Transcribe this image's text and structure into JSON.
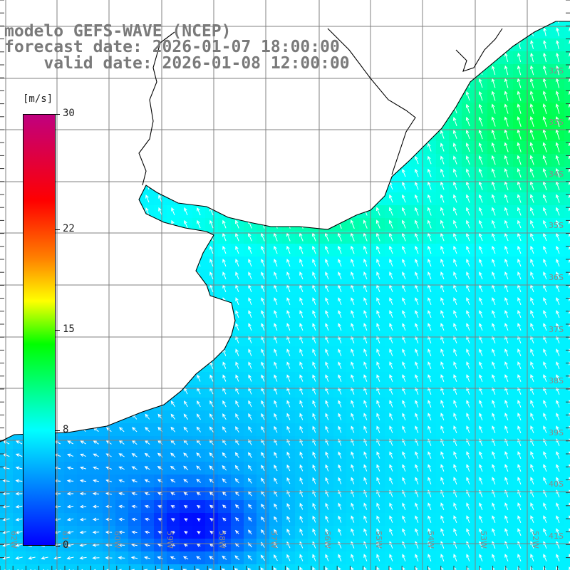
{
  "title": {
    "line1": "modelo GEFS-WAVE (NCEP)",
    "line2": "forecast date: 2026-01-07 18:00:00",
    "line3": "    valid date: 2026-01-08 12:00:00"
  },
  "colorbar": {
    "unit": "[m/s]",
    "min": 0,
    "max": 30,
    "ticks": [
      "30",
      "22",
      "15",
      "8",
      "0"
    ],
    "tick_values": [
      30,
      22,
      15,
      8,
      0
    ],
    "stops": [
      {
        "v": 0,
        "color": "#0000ff"
      },
      {
        "v": 4,
        "color": "#0080ff"
      },
      {
        "v": 8,
        "color": "#00ffff"
      },
      {
        "v": 11,
        "color": "#00ff80"
      },
      {
        "v": 14,
        "color": "#00ff00"
      },
      {
        "v": 17,
        "color": "#ffff00"
      },
      {
        "v": 20,
        "color": "#ff8000"
      },
      {
        "v": 24,
        "color": "#ff0000"
      },
      {
        "v": 30,
        "color": "#c0007f"
      }
    ]
  },
  "map": {
    "lon_range": [
      -63,
      -52
    ],
    "lat_range": [
      -42,
      -31
    ],
    "lon_labels": [
      "62W",
      "61W",
      "60W",
      "59W",
      "58W",
      "57W",
      "56W",
      "55W",
      "54W",
      "53W",
      "52W"
    ],
    "lat_labels": [
      "32S",
      "33S",
      "34S",
      "35S",
      "36S",
      "37S",
      "38S",
      "39S",
      "40S",
      "41S"
    ],
    "land_color": "#ffffff",
    "coast_color": "#000000",
    "grid_color": "#808080"
  }
}
